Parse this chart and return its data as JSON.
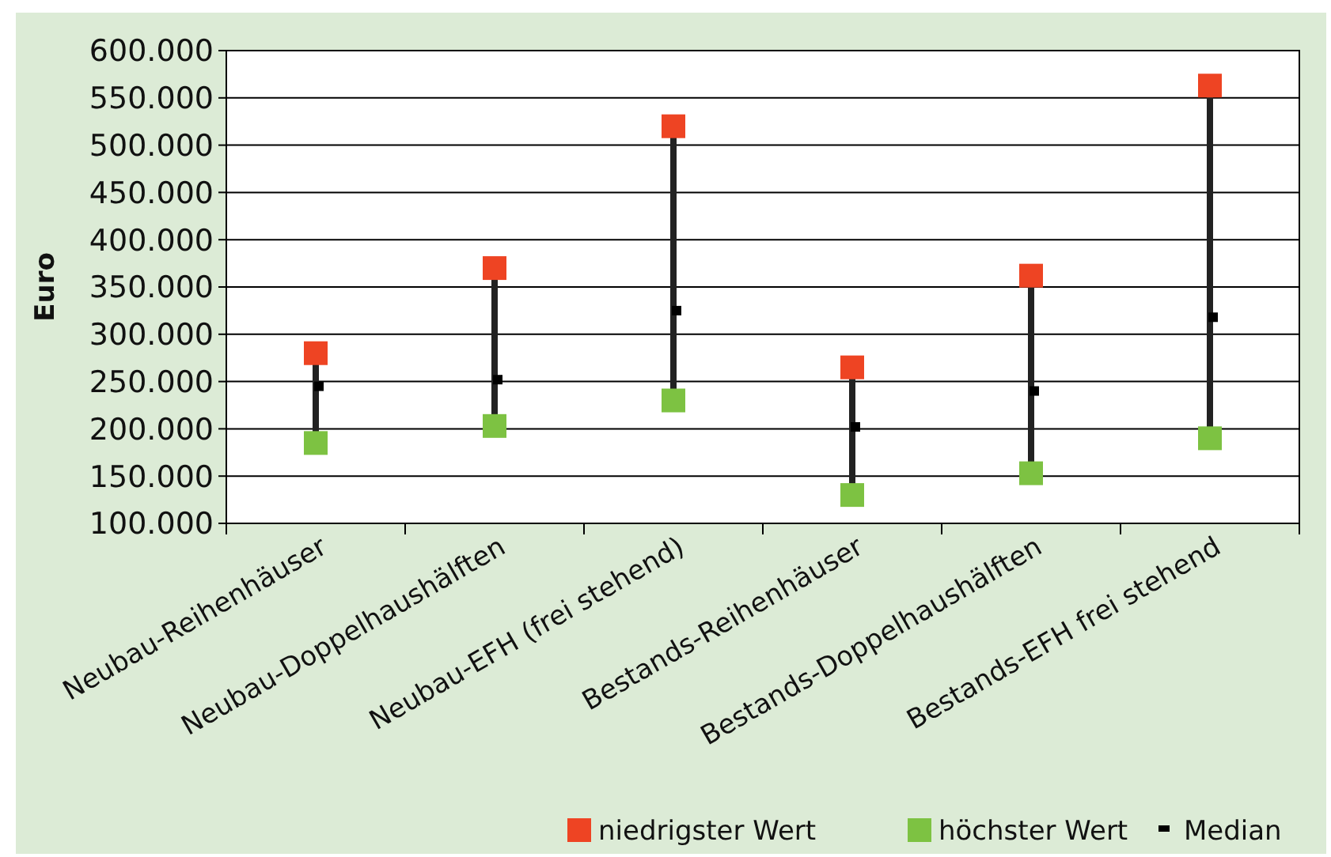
{
  "chart_data": {
    "type": "scatter",
    "ylabel": "Euro",
    "categories": [
      "Neubau-Reihenhäuser",
      "Neubau-Doppelhaushälften",
      "Neubau-EFH (frei stehend)",
      "Bestands-Reihenhäuser",
      "Bestands-Doppelhaushälften",
      "Bestands-EFH frei stehend"
    ],
    "series": [
      {
        "name": "niedrigster Wert",
        "color": "#ee4423",
        "values": [
          280000,
          370000,
          520000,
          265000,
          362000,
          563000
        ]
      },
      {
        "name": "höchster Wert",
        "color": "#7dc242",
        "values": [
          185000,
          203000,
          230000,
          130000,
          153000,
          190000
        ]
      },
      {
        "name": "Median",
        "color": "#000000",
        "values": [
          245000,
          252000,
          325000,
          202000,
          240000,
          318000
        ]
      }
    ],
    "ylim": [
      100000,
      600000
    ],
    "yticks": [
      {
        "value": 100000,
        "label": "100.000"
      },
      {
        "value": 150000,
        "label": "150.000"
      },
      {
        "value": 200000,
        "label": "200.000"
      },
      {
        "value": 250000,
        "label": "250.000"
      },
      {
        "value": 300000,
        "label": "300.000"
      },
      {
        "value": 350000,
        "label": "350.000"
      },
      {
        "value": 400000,
        "label": "400.000"
      },
      {
        "value": 450000,
        "label": "450.000"
      },
      {
        "value": 500000,
        "label": "500.000"
      },
      {
        "value": 550000,
        "label": "550.000"
      },
      {
        "value": 600000,
        "label": "600.000"
      }
    ],
    "grid": "y",
    "legend": "bottom right",
    "marker": "square"
  }
}
